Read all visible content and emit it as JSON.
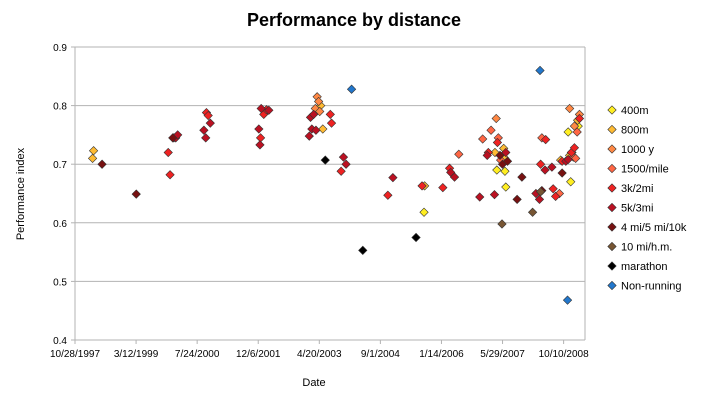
{
  "chart_data": {
    "type": "scatter",
    "title": "Performance by distance",
    "xlabel": "Date",
    "ylabel": "Performance index",
    "x_ticks": [
      "10/28/1997",
      "3/12/1999",
      "7/24/2000",
      "12/6/2001",
      "4/20/2003",
      "9/1/2004",
      "1/14/2006",
      "5/29/2007",
      "10/10/2008"
    ],
    "xlim": [
      "1997-10-28",
      "2009-03-06"
    ],
    "y_ticks": [
      "0.4",
      "0.5",
      "0.6",
      "0.7",
      "0.8",
      "0.9"
    ],
    "ylim": [
      0.4,
      0.9
    ],
    "grid": "horizontal",
    "legend_position": "right",
    "series": [
      {
        "name": "400m",
        "color": "#ffee22",
        "points": [
          [
            "2005-08-05",
            0.618
          ],
          [
            "2007-03-20",
            0.69
          ],
          [
            "2007-05-25",
            0.688
          ],
          [
            "2007-06-01",
            0.661
          ],
          [
            "2008-10-20",
            0.755
          ],
          [
            "2008-11-10",
            0.67
          ],
          [
            "2009-01-10",
            0.765
          ]
        ]
      },
      {
        "name": "800m",
        "color": "#ffbb33",
        "points": [
          [
            "1998-03-20",
            0.71
          ],
          [
            "1998-03-28",
            0.723
          ],
          [
            "2003-04-18",
            0.8
          ],
          [
            "2003-05-05",
            0.76
          ],
          [
            "2005-08-10",
            0.663
          ],
          [
            "2007-03-05",
            0.72
          ],
          [
            "2007-05-15",
            0.727
          ],
          [
            "2007-05-25",
            0.71
          ],
          [
            "2008-08-20",
            0.707
          ],
          [
            "2008-11-01",
            0.715
          ],
          [
            "2008-11-20",
            0.72
          ],
          [
            "2009-01-05",
            0.775
          ]
        ]
      },
      {
        "name": "1000 y",
        "color": "#ff8844",
        "points": [
          [
            "2003-03-05",
            0.795
          ],
          [
            "2003-03-20",
            0.815
          ],
          [
            "2003-04-01",
            0.807
          ],
          [
            "2003-04-10",
            0.79
          ],
          [
            "2007-03-15",
            0.778
          ],
          [
            "2008-11-01",
            0.795
          ],
          [
            "2008-12-10",
            0.765
          ],
          [
            "2009-01-20",
            0.785
          ]
        ]
      },
      {
        "name": "1500/mile",
        "color": "#ff6644",
        "points": [
          [
            "2006-05-15",
            0.717
          ],
          [
            "2006-11-25",
            0.743
          ],
          [
            "2007-02-01",
            0.758
          ],
          [
            "2007-04-01",
            0.745
          ],
          [
            "2007-04-20",
            0.707
          ],
          [
            "2008-03-20",
            0.745
          ],
          [
            "2008-08-10",
            0.65
          ],
          [
            "2008-12-01",
            0.712
          ],
          [
            "2008-12-20",
            0.71
          ],
          [
            "2009-01-01",
            0.755
          ]
        ]
      },
      {
        "name": "3k/2mi",
        "color": "#ee2222",
        "points": [
          [
            "1999-11-25",
            0.72
          ],
          [
            "1999-12-10",
            0.682
          ],
          [
            "2000-10-01",
            0.788
          ],
          [
            "2000-10-15",
            0.783
          ],
          [
            "2001-12-15",
            0.745
          ],
          [
            "2002-01-10",
            0.785
          ],
          [
            "2002-02-01",
            0.793
          ],
          [
            "2003-07-05",
            0.785
          ],
          [
            "2003-07-15",
            0.77
          ],
          [
            "2003-10-01",
            0.688
          ],
          [
            "2004-10-15",
            0.647
          ],
          [
            "2005-07-20",
            0.663
          ],
          [
            "2006-01-05",
            0.66
          ],
          [
            "2006-03-01",
            0.693
          ],
          [
            "2007-01-10",
            0.72
          ],
          [
            "2007-03-25",
            0.737
          ],
          [
            "2008-03-10",
            0.7
          ],
          [
            "2008-04-20",
            0.742
          ],
          [
            "2008-06-20",
            0.658
          ],
          [
            "2008-07-10",
            0.645
          ],
          [
            "2008-09-01",
            0.705
          ],
          [
            "2008-11-15",
            0.72
          ],
          [
            "2008-12-10",
            0.728
          ],
          [
            "2009-01-20",
            0.778
          ]
        ]
      },
      {
        "name": "5k/3mi",
        "color": "#bb1122",
        "points": [
          [
            "2000-01-10",
            0.745
          ],
          [
            "2000-01-25",
            0.745
          ],
          [
            "2000-02-10",
            0.75
          ],
          [
            "2000-09-10",
            0.758
          ],
          [
            "2000-09-25",
            0.745
          ],
          [
            "2000-11-01",
            0.77
          ],
          [
            "2001-12-01",
            0.76
          ],
          [
            "2001-12-10",
            0.733
          ],
          [
            "2001-12-20",
            0.795
          ],
          [
            "2002-02-20",
            0.792
          ],
          [
            "2003-01-15",
            0.748
          ],
          [
            "2003-01-25",
            0.78
          ],
          [
            "2003-02-05",
            0.76
          ],
          [
            "2003-02-20",
            0.785
          ],
          [
            "2003-03-10",
            0.758
          ],
          [
            "2003-10-20",
            0.712
          ],
          [
            "2003-11-10",
            0.7
          ],
          [
            "2004-11-25",
            0.677
          ],
          [
            "2006-03-10",
            0.686
          ],
          [
            "2006-04-10",
            0.678
          ],
          [
            "2006-11-01",
            0.644
          ],
          [
            "2007-01-01",
            0.715
          ],
          [
            "2007-03-01",
            0.648
          ],
          [
            "2007-06-01",
            0.72
          ],
          [
            "2008-02-01",
            0.65
          ],
          [
            "2008-03-01",
            0.64
          ],
          [
            "2008-04-15",
            0.69
          ],
          [
            "2008-06-10",
            0.695
          ],
          [
            "2008-10-01",
            0.705
          ],
          [
            "2008-10-20",
            0.708
          ]
        ]
      },
      {
        "name": "4 mi/5 mi/10k",
        "color": "#771111",
        "points": [
          [
            "1998-06-05",
            0.7
          ],
          [
            "1999-03-10",
            0.649
          ],
          [
            "2000-01-01",
            0.745
          ],
          [
            "2007-04-15",
            0.715
          ],
          [
            "2007-05-05",
            0.7
          ],
          [
            "2007-06-15",
            0.705
          ],
          [
            "2007-09-01",
            0.64
          ],
          [
            "2007-10-10",
            0.678
          ],
          [
            "2008-03-20",
            0.655
          ],
          [
            "2008-09-01",
            0.685
          ]
        ]
      },
      {
        "name": "10 mi/h.m.",
        "color": "#775533",
        "points": [
          [
            "2007-05-01",
            0.598
          ],
          [
            "2008-01-05",
            0.618
          ],
          [
            "2008-03-10",
            0.653
          ]
        ]
      },
      {
        "name": "marathon",
        "color": "#000000",
        "points": [
          [
            "2003-05-25",
            0.707
          ],
          [
            "2004-03-25",
            0.553
          ],
          [
            "2005-06-01",
            0.575
          ]
        ]
      },
      {
        "name": "Non-running",
        "color": "#2277cc",
        "points": [
          [
            "2003-12-25",
            0.828
          ],
          [
            "2008-03-05",
            0.86
          ],
          [
            "2008-10-15",
            0.468
          ]
        ]
      }
    ]
  }
}
